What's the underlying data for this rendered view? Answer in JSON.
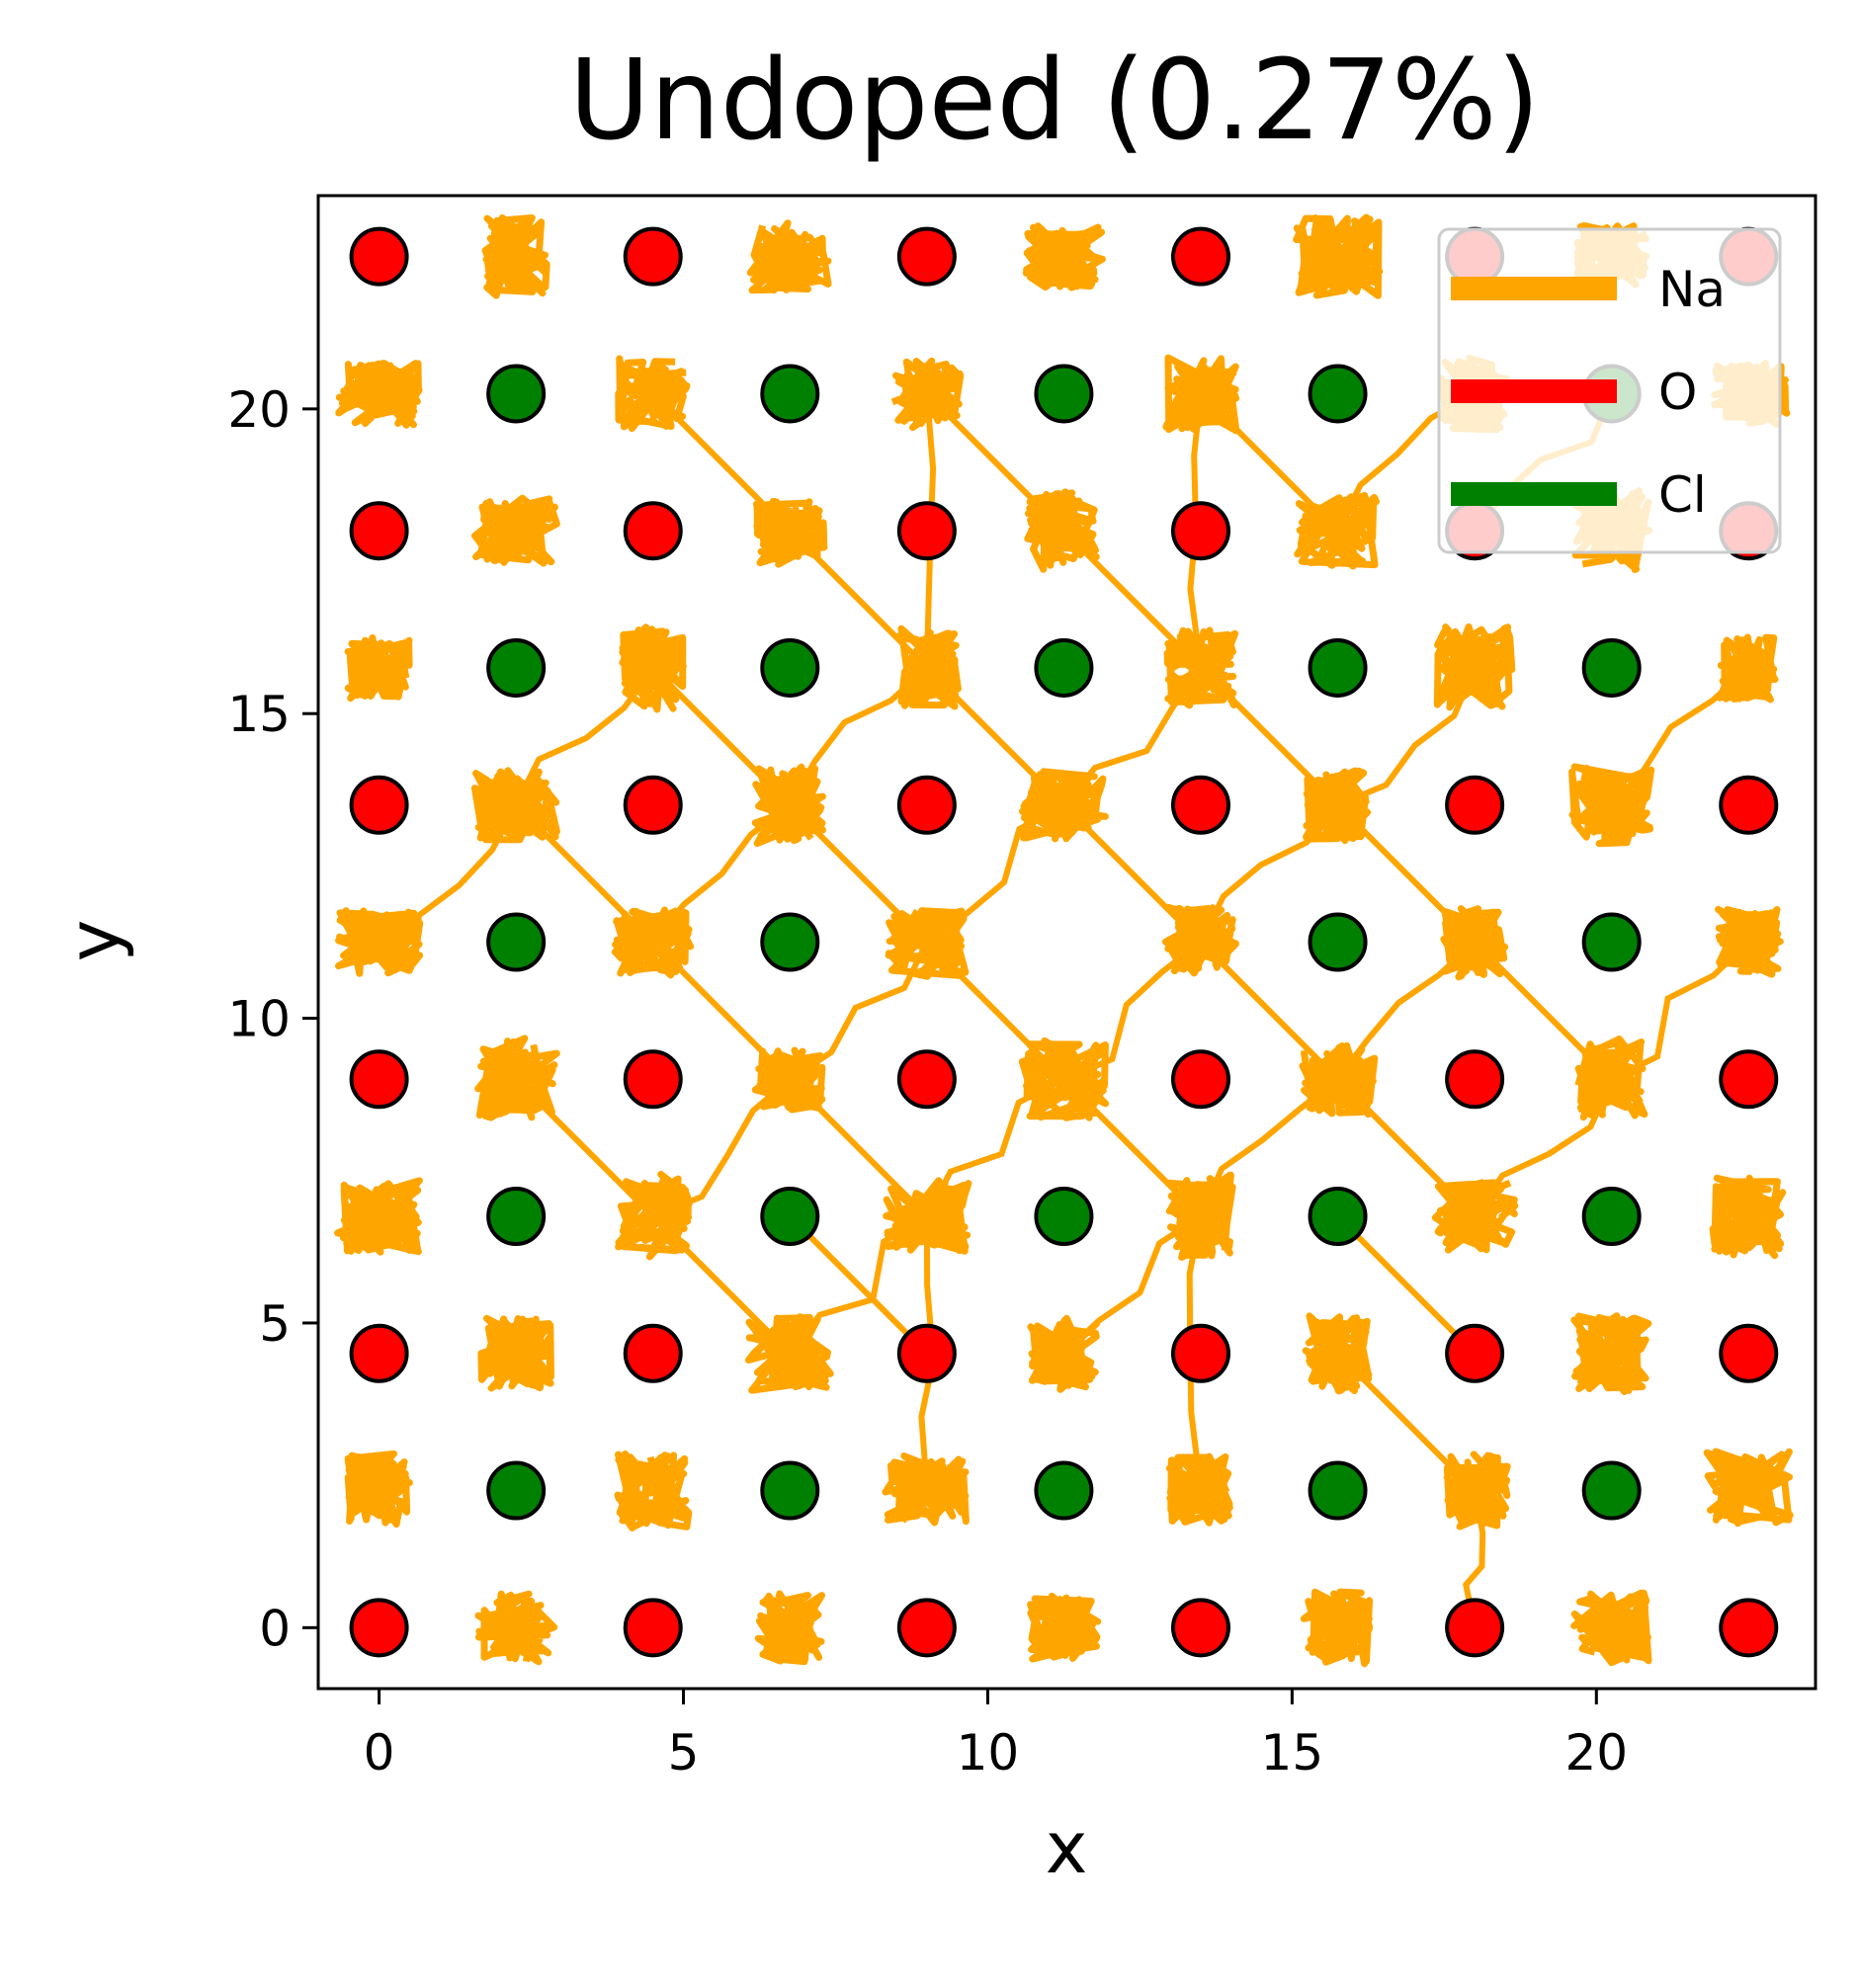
{
  "chart_data": {
    "type": "scatter",
    "title": "Undoped (0.27%)",
    "xlabel": "x",
    "ylabel": "y",
    "xlim": [
      -1.0,
      23.6
    ],
    "ylim": [
      -1.0,
      23.5
    ],
    "x_ticks": [
      0,
      5,
      10,
      15,
      20
    ],
    "y_ticks": [
      0,
      5,
      10,
      15,
      20
    ],
    "x_tick_labels": [
      "0",
      "5",
      "10",
      "15",
      "20"
    ],
    "y_tick_labels": [
      "0",
      "5",
      "10",
      "15",
      "20"
    ],
    "grid": false,
    "legend_position": "top-right",
    "legend": [
      {
        "name": "Na",
        "color": "#ffa500"
      },
      {
        "name": "O",
        "color": "#ff0000"
      },
      {
        "name": "Cl",
        "color": "#008000"
      }
    ],
    "series": [
      {
        "name": "O",
        "color": "#ff0000",
        "marker": "circle",
        "points": [
          [
            0,
            0
          ],
          [
            4.5,
            0
          ],
          [
            9,
            0
          ],
          [
            13.5,
            0
          ],
          [
            18,
            0
          ],
          [
            22.5,
            0
          ],
          [
            0,
            4.5
          ],
          [
            4.5,
            4.5
          ],
          [
            9,
            4.5
          ],
          [
            13.5,
            4.5
          ],
          [
            18,
            4.5
          ],
          [
            22.5,
            4.5
          ],
          [
            0,
            9
          ],
          [
            4.5,
            9
          ],
          [
            9,
            9
          ],
          [
            13.5,
            9
          ],
          [
            18,
            9
          ],
          [
            22.5,
            9
          ],
          [
            0,
            13.5
          ],
          [
            4.5,
            13.5
          ],
          [
            9,
            13.5
          ],
          [
            13.5,
            13.5
          ],
          [
            18,
            13.5
          ],
          [
            22.5,
            13.5
          ],
          [
            0,
            18
          ],
          [
            4.5,
            18
          ],
          [
            9,
            18
          ],
          [
            13.5,
            18
          ],
          [
            18,
            18
          ],
          [
            22.5,
            18
          ],
          [
            0,
            22.5
          ],
          [
            4.5,
            22.5
          ],
          [
            9,
            22.5
          ],
          [
            13.5,
            22.5
          ],
          [
            18,
            22.5
          ],
          [
            22.5,
            22.5
          ]
        ]
      },
      {
        "name": "Cl",
        "color": "#008000",
        "marker": "circle",
        "points": [
          [
            2.25,
            2.25
          ],
          [
            6.75,
            2.25
          ],
          [
            11.25,
            2.25
          ],
          [
            15.75,
            2.25
          ],
          [
            20.25,
            2.25
          ],
          [
            2.25,
            6.75
          ],
          [
            6.75,
            6.75
          ],
          [
            11.25,
            6.75
          ],
          [
            15.75,
            6.75
          ],
          [
            20.25,
            6.75
          ],
          [
            2.25,
            11.25
          ],
          [
            6.75,
            11.25
          ],
          [
            15.75,
            11.25
          ],
          [
            20.25,
            11.25
          ],
          [
            2.25,
            15.75
          ],
          [
            6.75,
            15.75
          ],
          [
            11.25,
            15.75
          ],
          [
            15.75,
            15.75
          ],
          [
            20.25,
            15.75
          ],
          [
            2.25,
            20.25
          ],
          [
            6.75,
            20.25
          ],
          [
            11.25,
            20.25
          ],
          [
            15.75,
            20.25
          ],
          [
            20.25,
            20.25
          ]
        ]
      },
      {
        "name": "Na",
        "color": "#ffa500",
        "marker": "trajectory",
        "sites": [
          [
            2.25,
            0
          ],
          [
            6.75,
            0
          ],
          [
            11.25,
            0
          ],
          [
            15.75,
            0
          ],
          [
            20.25,
            0
          ],
          [
            0,
            2.25
          ],
          [
            4.5,
            2.25
          ],
          [
            9,
            2.25
          ],
          [
            13.5,
            2.25
          ],
          [
            18,
            2.25
          ],
          [
            22.5,
            2.25
          ],
          [
            2.25,
            4.5
          ],
          [
            6.75,
            4.5
          ],
          [
            11.25,
            4.5
          ],
          [
            15.75,
            4.5
          ],
          [
            20.25,
            4.5
          ],
          [
            0,
            6.75
          ],
          [
            4.5,
            6.75
          ],
          [
            9,
            6.75
          ],
          [
            13.5,
            6.75
          ],
          [
            18,
            6.75
          ],
          [
            22.5,
            6.75
          ],
          [
            2.25,
            9
          ],
          [
            6.75,
            9
          ],
          [
            11.25,
            9
          ],
          [
            15.75,
            9
          ],
          [
            20.25,
            9
          ],
          [
            0,
            11.25
          ],
          [
            4.5,
            11.25
          ],
          [
            9,
            11.25
          ],
          [
            13.5,
            11.25
          ],
          [
            18,
            11.25
          ],
          [
            22.5,
            11.25
          ],
          [
            2.25,
            13.5
          ],
          [
            6.75,
            13.5
          ],
          [
            11.25,
            13.5
          ],
          [
            15.75,
            13.5
          ],
          [
            20.25,
            13.5
          ],
          [
            0,
            15.75
          ],
          [
            4.5,
            15.75
          ],
          [
            9,
            15.75
          ],
          [
            13.5,
            15.75
          ],
          [
            18,
            15.75
          ],
          [
            22.5,
            15.75
          ],
          [
            2.25,
            18
          ],
          [
            6.75,
            18
          ],
          [
            11.25,
            18
          ],
          [
            15.75,
            18
          ],
          [
            20.25,
            18
          ],
          [
            0,
            20.25
          ],
          [
            4.5,
            20.25
          ],
          [
            9,
            20.25
          ],
          [
            13.5,
            20.25
          ],
          [
            18,
            20.25
          ],
          [
            22.5,
            20.25
          ],
          [
            2.25,
            22.5
          ],
          [
            6.75,
            22.5
          ],
          [
            11.25,
            22.5
          ],
          [
            15.75,
            22.5
          ],
          [
            20.25,
            22.5
          ]
        ],
        "hops": [
          [
            [
              4.5,
              6.75
            ],
            [
              6.75,
              9
            ]
          ],
          [
            [
              6.75,
              9
            ],
            [
              9,
              11.25
            ]
          ],
          [
            [
              9,
              11.25
            ],
            [
              11.25,
              13.5
            ]
          ],
          [
            [
              11.25,
              13.5
            ],
            [
              13.5,
              11.25
            ]
          ],
          [
            [
              13.5,
              11.25
            ],
            [
              15.75,
              9
            ]
          ],
          [
            [
              15.75,
              9
            ],
            [
              18,
              6.75
            ]
          ],
          [
            [
              6.75,
              9
            ],
            [
              9,
              6.75
            ]
          ],
          [
            [
              9,
              6.75
            ],
            [
              11.25,
              9
            ]
          ],
          [
            [
              11.25,
              9
            ],
            [
              13.5,
              6.75
            ]
          ],
          [
            [
              13.5,
              6.75
            ],
            [
              15.75,
              9
            ]
          ],
          [
            [
              6.75,
              13.5
            ],
            [
              9,
              15.75
            ]
          ],
          [
            [
              9,
              15.75
            ],
            [
              11.25,
              13.5
            ]
          ],
          [
            [
              11.25,
              13.5
            ],
            [
              13.5,
              15.75
            ]
          ],
          [
            [
              13.5,
              15.75
            ],
            [
              15.75,
              13.5
            ]
          ],
          [
            [
              6.75,
              13.5
            ],
            [
              9,
              11.25
            ]
          ],
          [
            [
              9,
              11.25
            ],
            [
              11.25,
              9
            ]
          ],
          [
            [
              11.25,
              9
            ],
            [
              13.5,
              11.25
            ]
          ],
          [
            [
              13.5,
              11.25
            ],
            [
              15.75,
              13.5
            ]
          ],
          [
            [
              4.5,
              11.25
            ],
            [
              6.75,
              13.5
            ]
          ],
          [
            [
              4.5,
              11.25
            ],
            [
              6.75,
              9
            ]
          ],
          [
            [
              15.75,
              9
            ],
            [
              18,
              11.25
            ]
          ],
          [
            [
              18,
              11.25
            ],
            [
              20.25,
              9
            ]
          ],
          [
            [
              15.75,
              13.5
            ],
            [
              18,
              11.25
            ]
          ],
          [
            [
              2.25,
              13.5
            ],
            [
              4.5,
              15.75
            ]
          ],
          [
            [
              4.5,
              15.75
            ],
            [
              6.75,
              13.5
            ]
          ],
          [
            [
              9,
              15.75
            ],
            [
              9,
              20.25
            ]
          ],
          [
            [
              13.5,
              15.75
            ],
            [
              13.5,
              20.25
            ]
          ],
          [
            [
              6.75,
              18
            ],
            [
              9,
              15.75
            ]
          ],
          [
            [
              15.75,
              13.5
            ],
            [
              18,
              15.75
            ]
          ],
          [
            [
              18,
              6.75
            ],
            [
              20.25,
              9
            ]
          ],
          [
            [
              9,
              6.75
            ],
            [
              9,
              2.25
            ]
          ],
          [
            [
              13.5,
              6.75
            ],
            [
              13.5,
              2.25
            ]
          ],
          [
            [
              11.25,
              4.5
            ],
            [
              13.5,
              6.75
            ]
          ],
          [
            [
              6.75,
              4.5
            ],
            [
              9,
              6.75
            ]
          ],
          [
            [
              15.75,
              4.5
            ],
            [
              18,
              2.25
            ]
          ],
          [
            [
              18,
              2.25
            ],
            [
              18,
              0
            ]
          ],
          [
            [
              20.25,
              9
            ],
            [
              22.5,
              11.25
            ]
          ],
          [
            [
              0,
              11.25
            ],
            [
              2.25,
              13.5
            ]
          ],
          [
            [
              2.25,
              13.5
            ],
            [
              4.5,
              11.25
            ]
          ],
          [
            [
              18,
              18
            ],
            [
              20.25,
              20.25
            ]
          ],
          [
            [
              4.5,
              20.25
            ],
            [
              6.75,
              18
            ]
          ],
          [
            [
              15.75,
              18
            ],
            [
              18,
              20.25
            ]
          ],
          [
            [
              20.25,
              13.5
            ],
            [
              22.5,
              15.75
            ]
          ],
          [
            [
              2.25,
              9
            ],
            [
              4.5,
              6.75
            ]
          ],
          [
            [
              4.5,
              6.75
            ],
            [
              6.75,
              4.5
            ]
          ],
          [
            [
              13.5,
              20.25
            ],
            [
              15.75,
              18
            ]
          ],
          [
            [
              9,
              20.25
            ],
            [
              11.25,
              18
            ]
          ],
          [
            [
              11.25,
              18
            ],
            [
              13.5,
              15.75
            ]
          ],
          [
            [
              15.75,
              6.75
            ],
            [
              18,
              4.5
            ]
          ],
          [
            [
              6.75,
              6.75
            ],
            [
              9,
              4.5
            ]
          ]
        ]
      }
    ]
  }
}
